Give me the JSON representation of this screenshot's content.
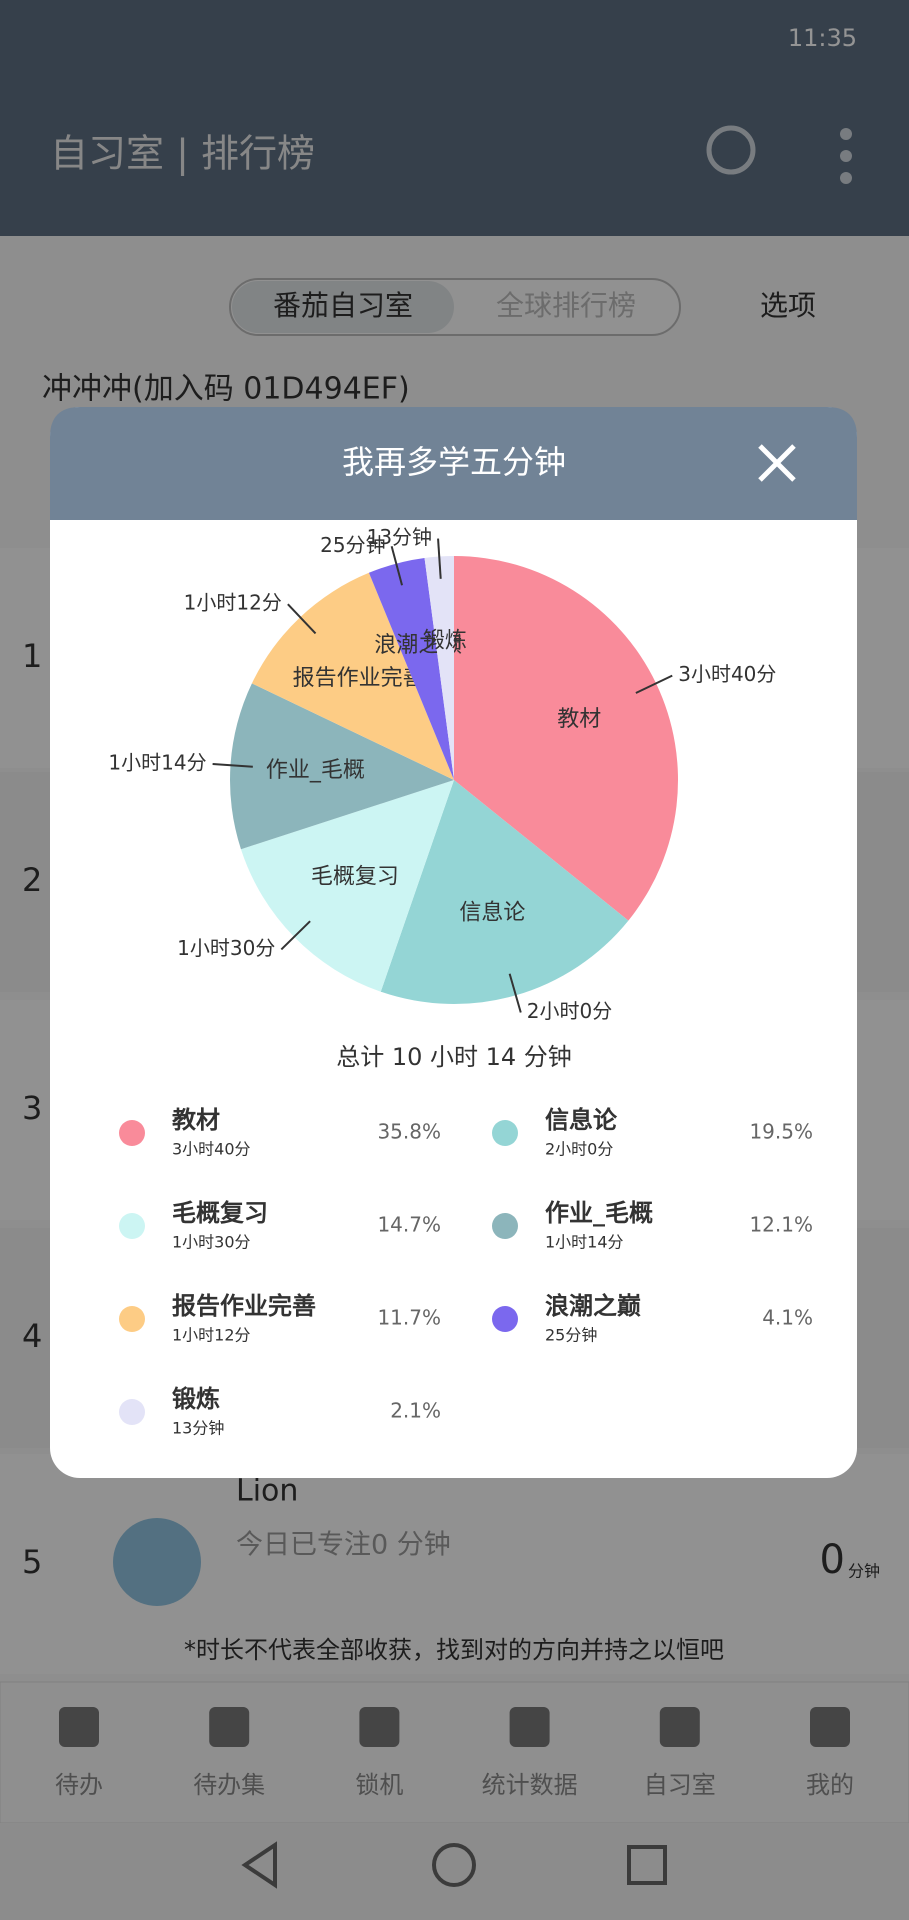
{
  "status_bar": {
    "time": "11:35"
  },
  "header": {
    "title": "自习室 | 排行榜"
  },
  "tabs": [
    "番茄自习室",
    "全球排行榜",
    "选项"
  ],
  "room": {
    "name": "冲冲冲(加入码 01D494EF)"
  },
  "ranking": {
    "ranks": [
      "1",
      "2",
      "3",
      "4",
      "5"
    ],
    "visible_user": {
      "name": "Lion",
      "status": "今日已专注0 分钟",
      "minutes": "0",
      "unit": "分钟"
    }
  },
  "note": "*时长不代表全部收获，找到对的方向并持之以恒吧",
  "nav": [
    "待办",
    "待办集",
    "锁机",
    "统计数据",
    "自习室",
    "我的"
  ],
  "dialog": {
    "title": "我再多学五分钟",
    "chart_data": {
      "type": "pie",
      "categories": [
        "教材",
        "信息论",
        "毛概复习",
        "作业_毛概",
        "报告作业完善",
        "浪潮之巅",
        "锻炼"
      ],
      "values": [
        35.8,
        19.5,
        14.7,
        12.1,
        11.7,
        4.1,
        2.1
      ],
      "value_labels": [
        "35.8%",
        "19.5%",
        "14.7%",
        "12.1%",
        "11.7%",
        "4.1%",
        "2.1%"
      ],
      "durations": [
        "3小时40分",
        "2小时0分",
        "1小时30分",
        "1小时14分",
        "1小时12分",
        "25分钟",
        "13分钟"
      ],
      "colors": [
        "#f98b9a",
        "#94d5d5",
        "#ccf5f3",
        "#8cb5bb",
        "#fdcc85",
        "#7b68ee",
        "#e3e3f7"
      ]
    },
    "total": "总计 10 小时 14 分钟"
  }
}
